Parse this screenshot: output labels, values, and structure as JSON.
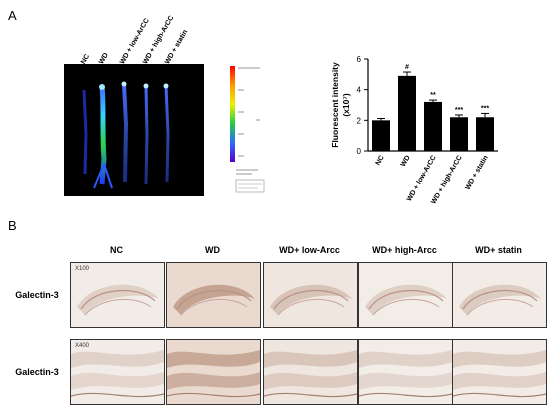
{
  "panel_a_label": "A",
  "panel_b_label": "B",
  "imaging": {
    "lanes": [
      "NC",
      "WD",
      "WD + low-ArCC",
      "WD + high-ArCC",
      "WD + statin"
    ]
  },
  "chart_data": {
    "type": "bar",
    "categories": [
      "NC",
      "WD",
      "WD + low-ArCC",
      "WD + high-ArCC",
      "WD + statin"
    ],
    "values": [
      2.0,
      4.9,
      3.2,
      2.2,
      2.2
    ],
    "errors": [
      0.12,
      0.25,
      0.12,
      0.15,
      0.25
    ],
    "significance": [
      "",
      "#",
      "**",
      "***",
      "***"
    ],
    "ylabel": "Fluorescent intensity",
    "ylabel_unit": "(x10⁷)",
    "ylim": [
      0,
      6
    ],
    "yticks": [
      0,
      2,
      4,
      6
    ],
    "bar_color": "#000000"
  },
  "panel_b": {
    "column_headers": [
      "NC",
      "WD",
      "WD+ low-Arcc",
      "WD+ high-Arcc",
      "WD+ statin"
    ],
    "rows": [
      {
        "label": "Galectin-3",
        "magnification": "X100"
      },
      {
        "label": "Galectin-3",
        "magnification": "X400"
      }
    ]
  }
}
